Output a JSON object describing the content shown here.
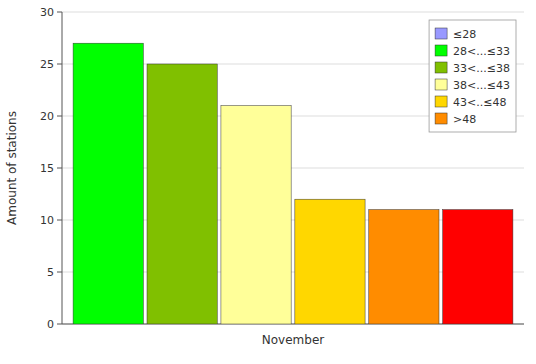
{
  "chart_data": {
    "type": "bar",
    "categories": [
      "November"
    ],
    "ylabel": "Amount of stations",
    "series": [
      {
        "name": "≤28",
        "color": "#9999FF",
        "values": [
          null
        ]
      },
      {
        "name": "28<...≤33",
        "color": "#00FF00",
        "values": [
          27
        ]
      },
      {
        "name": "33<...≤38",
        "color": "#80C000",
        "values": [
          25
        ]
      },
      {
        "name": "38<...≤43",
        "color": "#FFFF99",
        "values": [
          21
        ]
      },
      {
        "name": "43<..≤48",
        "color": "#FFD700",
        "values": [
          12
        ]
      },
      {
        "name": ">48",
        "color": "#FF8C00",
        "values": [
          11
        ]
      },
      {
        "color": "#FF0000",
        "values": [
          11
        ]
      }
    ],
    "ylim": [
      0,
      30
    ],
    "yticks": [
      0,
      5,
      10,
      15,
      20,
      25,
      30
    ],
    "grid": true,
    "legend": "upper right"
  }
}
